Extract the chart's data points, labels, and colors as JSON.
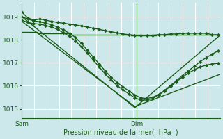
{
  "bg_color": "#cce8ea",
  "grid_color": "#ffffff",
  "line_color": "#1a5c1a",
  "ylim": [
    1014.6,
    1019.6
  ],
  "yticks": [
    1015,
    1016,
    1017,
    1018,
    1019
  ],
  "xlim": [
    0,
    1.0
  ],
  "xtick_sam": 0.0,
  "xtick_dim": 0.58,
  "dim_vline": 0.58,
  "xlabel": "Pression niveau de la mer(  hPa  )",
  "n_vgrid": 16,
  "series": [
    {
      "x": [
        0.0,
        0.08,
        0.08,
        0.25,
        0.25,
        0.55,
        0.55,
        0.68,
        0.68,
        1.0
      ],
      "y": [
        1018.35,
        1018.35,
        1018.28,
        1018.28,
        1018.22,
        1018.22,
        1018.18,
        1018.18,
        1018.22,
        1018.22
      ],
      "marker": null,
      "lw": 1.0
    },
    {
      "x": [
        0.0,
        0.03,
        0.06,
        0.09,
        0.12,
        0.15,
        0.18,
        0.21,
        0.24,
        0.27,
        0.3,
        0.33,
        0.36,
        0.39,
        0.42,
        0.45,
        0.48,
        0.51,
        0.54,
        0.57,
        0.6,
        0.63,
        0.66,
        0.69,
        0.72,
        0.75,
        0.78,
        0.81,
        0.84,
        0.87,
        0.9,
        0.93,
        0.96,
        0.99
      ],
      "y": [
        1019.2,
        1018.95,
        1018.85,
        1018.9,
        1018.85,
        1018.8,
        1018.75,
        1018.72,
        1018.68,
        1018.64,
        1018.6,
        1018.55,
        1018.5,
        1018.45,
        1018.4,
        1018.35,
        1018.3,
        1018.25,
        1018.22,
        1018.2,
        1018.2,
        1018.2,
        1018.2,
        1018.22,
        1018.22,
        1018.25,
        1018.25,
        1018.28,
        1018.28,
        1018.28,
        1018.28,
        1018.28,
        1018.22,
        1018.22
      ],
      "marker": "D",
      "lw": 1.0
    },
    {
      "x": [
        0.0,
        0.03,
        0.06,
        0.09,
        0.12,
        0.15,
        0.18,
        0.21,
        0.24,
        0.27,
        0.3,
        0.33,
        0.36,
        0.39,
        0.42,
        0.45,
        0.48,
        0.51,
        0.54,
        0.57,
        0.6,
        0.63,
        0.66,
        0.69,
        0.72,
        0.75,
        0.78,
        0.81,
        0.84,
        0.87,
        0.9,
        0.93,
        0.96,
        0.99
      ],
      "y": [
        1019.0,
        1018.9,
        1018.82,
        1018.78,
        1018.72,
        1018.65,
        1018.55,
        1018.42,
        1018.28,
        1018.1,
        1017.85,
        1017.55,
        1017.25,
        1016.95,
        1016.65,
        1016.38,
        1016.15,
        1015.95,
        1015.78,
        1015.6,
        1015.48,
        1015.45,
        1015.5,
        1015.62,
        1015.8,
        1016.02,
        1016.22,
        1016.45,
        1016.65,
        1016.85,
        1017.05,
        1017.22,
        1017.38,
        1017.52
      ],
      "marker": "D",
      "lw": 1.0
    },
    {
      "x": [
        0.0,
        0.03,
        0.06,
        0.09,
        0.12,
        0.15,
        0.18,
        0.21,
        0.24,
        0.27,
        0.3,
        0.33,
        0.36,
        0.39,
        0.42,
        0.45,
        0.48,
        0.51,
        0.54,
        0.57,
        0.6,
        0.63,
        0.66,
        0.69,
        0.72,
        0.75,
        0.78,
        0.81,
        0.84,
        0.87,
        0.9,
        0.93,
        0.96,
        0.99
      ],
      "y": [
        1018.85,
        1018.75,
        1018.7,
        1018.68,
        1018.62,
        1018.55,
        1018.45,
        1018.3,
        1018.15,
        1017.95,
        1017.7,
        1017.42,
        1017.12,
        1016.82,
        1016.52,
        1016.25,
        1016.02,
        1015.82,
        1015.65,
        1015.48,
        1015.38,
        1015.38,
        1015.45,
        1015.6,
        1015.78,
        1015.98,
        1016.18,
        1016.38,
        1016.55,
        1016.7,
        1016.82,
        1016.9,
        1016.95,
        1016.98
      ],
      "marker": "D",
      "lw": 1.0
    },
    {
      "x": [
        0.0,
        0.57,
        1.0
      ],
      "y": [
        1019.0,
        1015.05,
        1018.2
      ],
      "marker": null,
      "lw": 1.0
    },
    {
      "x": [
        0.0,
        0.57,
        1.0
      ],
      "y": [
        1018.8,
        1015.1,
        1016.5
      ],
      "marker": null,
      "lw": 1.0
    }
  ]
}
